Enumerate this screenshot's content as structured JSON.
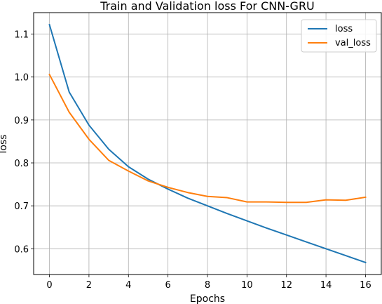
{
  "chart_data": {
    "type": "line",
    "title": "Train and Validation loss For CNN-GRU",
    "xlabel": "Epochs",
    "ylabel": "loss",
    "xlim": [
      -0.8,
      16.8
    ],
    "ylim": [
      0.54,
      1.15
    ],
    "xticks": [
      0,
      2,
      4,
      6,
      8,
      10,
      12,
      14,
      16
    ],
    "yticks": [
      0.6,
      0.7,
      0.8,
      0.9,
      1.0,
      1.1
    ],
    "ytick_labels": [
      "0.6",
      "0.7",
      "0.8",
      "0.9",
      "1.0",
      "1.1"
    ],
    "grid": true,
    "legend_position": "top-right",
    "x": [
      0,
      1,
      2,
      3,
      4,
      5,
      6,
      7,
      8,
      9,
      10,
      11,
      12,
      13,
      14,
      15,
      16
    ],
    "series": [
      {
        "name": "loss",
        "color": "#1f77b4",
        "values": [
          1.122,
          0.965,
          0.888,
          0.832,
          0.791,
          0.762,
          0.739,
          0.718,
          0.7,
          0.682,
          0.665,
          0.648,
          0.632,
          0.616,
          0.6,
          0.584,
          0.568
        ]
      },
      {
        "name": "val_loss",
        "color": "#ff7f0e",
        "values": [
          1.006,
          0.918,
          0.855,
          0.806,
          0.781,
          0.758,
          0.743,
          0.731,
          0.722,
          0.719,
          0.709,
          0.709,
          0.708,
          0.708,
          0.714,
          0.713,
          0.72
        ]
      }
    ]
  }
}
